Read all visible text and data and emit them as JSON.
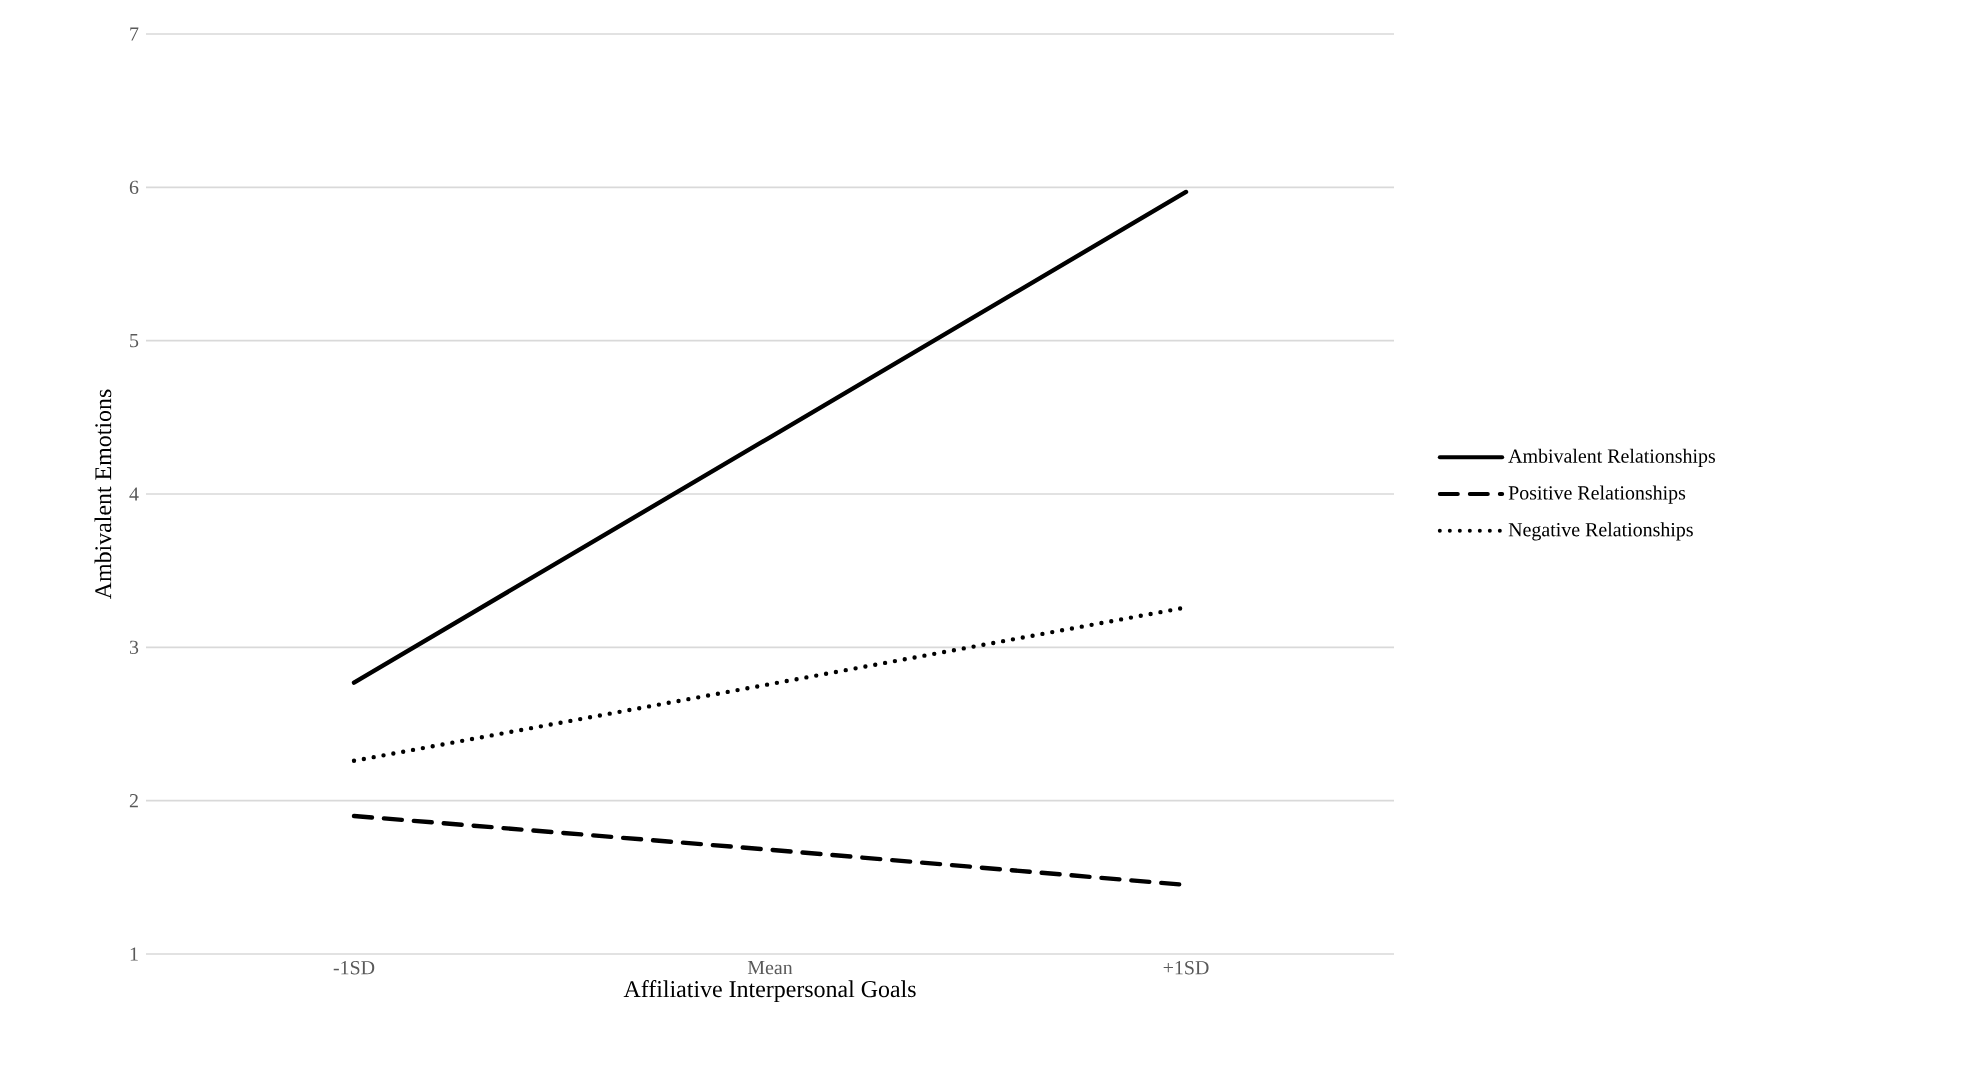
{
  "chart_data": {
    "type": "line",
    "xlabel": "Affiliative Interpersonal Goals",
    "ylabel": "Ambivalent Emotions",
    "categories": [
      "-1SD",
      "Mean",
      "+1SD"
    ],
    "series": [
      {
        "name": "Ambivalent Relationships",
        "color": "#000000",
        "line_style": "solid",
        "values": [
          2.77,
          4.37,
          5.97
        ]
      },
      {
        "name": "Positive Relationships",
        "color": "#000000",
        "line_style": "dashed",
        "values": [
          1.9,
          1.68,
          1.45
        ]
      },
      {
        "name": "Negative Relationships",
        "color": "#000000",
        "line_style": "dotted",
        "values": [
          2.26,
          2.76,
          3.26
        ]
      }
    ],
    "ylim": [
      1,
      7
    ],
    "yticks": [
      1,
      2,
      3,
      4,
      5,
      6,
      7
    ],
    "grid": "y",
    "legend": "right",
    "marker": "none"
  }
}
